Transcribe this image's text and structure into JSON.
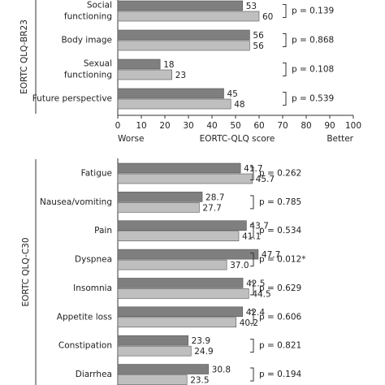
{
  "chart_data": [
    {
      "type": "bar",
      "orientation": "horizontal",
      "title": "EORTC QLQ-BR23",
      "categories": [
        "Social functioning",
        "Body image",
        "Sexual functioning",
        "Future perspective"
      ],
      "series": [
        {
          "color": "#7f7f7f",
          "values": [
            53,
            56,
            18,
            45
          ]
        },
        {
          "color": "#bfbfbf",
          "values": [
            60,
            56,
            23,
            48
          ]
        }
      ],
      "p_labels": [
        "p = 0.139",
        "p = 0.868",
        "p = 0.108",
        "p = 0.539"
      ],
      "xlabel": "EORTC-QLQ score",
      "axis_notes": [
        "Worse",
        "Better"
      ],
      "xlim": [
        0,
        100
      ],
      "xticks": [
        0,
        10,
        20,
        30,
        40,
        50,
        60,
        70,
        80,
        90,
        100
      ]
    },
    {
      "type": "bar",
      "orientation": "horizontal",
      "title": "EORTC QLQ-C30",
      "categories": [
        "Fatigue",
        "Nausea/vomiting",
        "Pain",
        "Dyspnea",
        "Insomnia",
        "Appetite loss",
        "Constipation",
        "Diarrhea"
      ],
      "series": [
        {
          "color": "#7f7f7f",
          "values": [
            41.7,
            28.7,
            43.7,
            47.7,
            42.5,
            42.4,
            23.9,
            30.8
          ],
          "value_labels": [
            "41.7",
            "28.7",
            "43.7",
            "47.7",
            "42.5",
            "42.4",
            "23.9",
            "30.8"
          ]
        },
        {
          "color": "#bfbfbf",
          "values": [
            45.7,
            27.7,
            41.1,
            37.0,
            44.5,
            40.2,
            24.9,
            23.5
          ],
          "value_labels": [
            "45.7",
            "27.7",
            "41.1",
            "37.0",
            "44.5",
            "40.2",
            "24.9",
            "23.5"
          ]
        }
      ],
      "p_labels": [
        "p = 0.262",
        "p = 0.785",
        "p = 0.534",
        "p = 0.012*",
        "p = 0.629",
        "p = 0.606",
        "p = 0.821",
        "p = 0.194"
      ],
      "xlim": [
        0,
        80
      ]
    }
  ]
}
